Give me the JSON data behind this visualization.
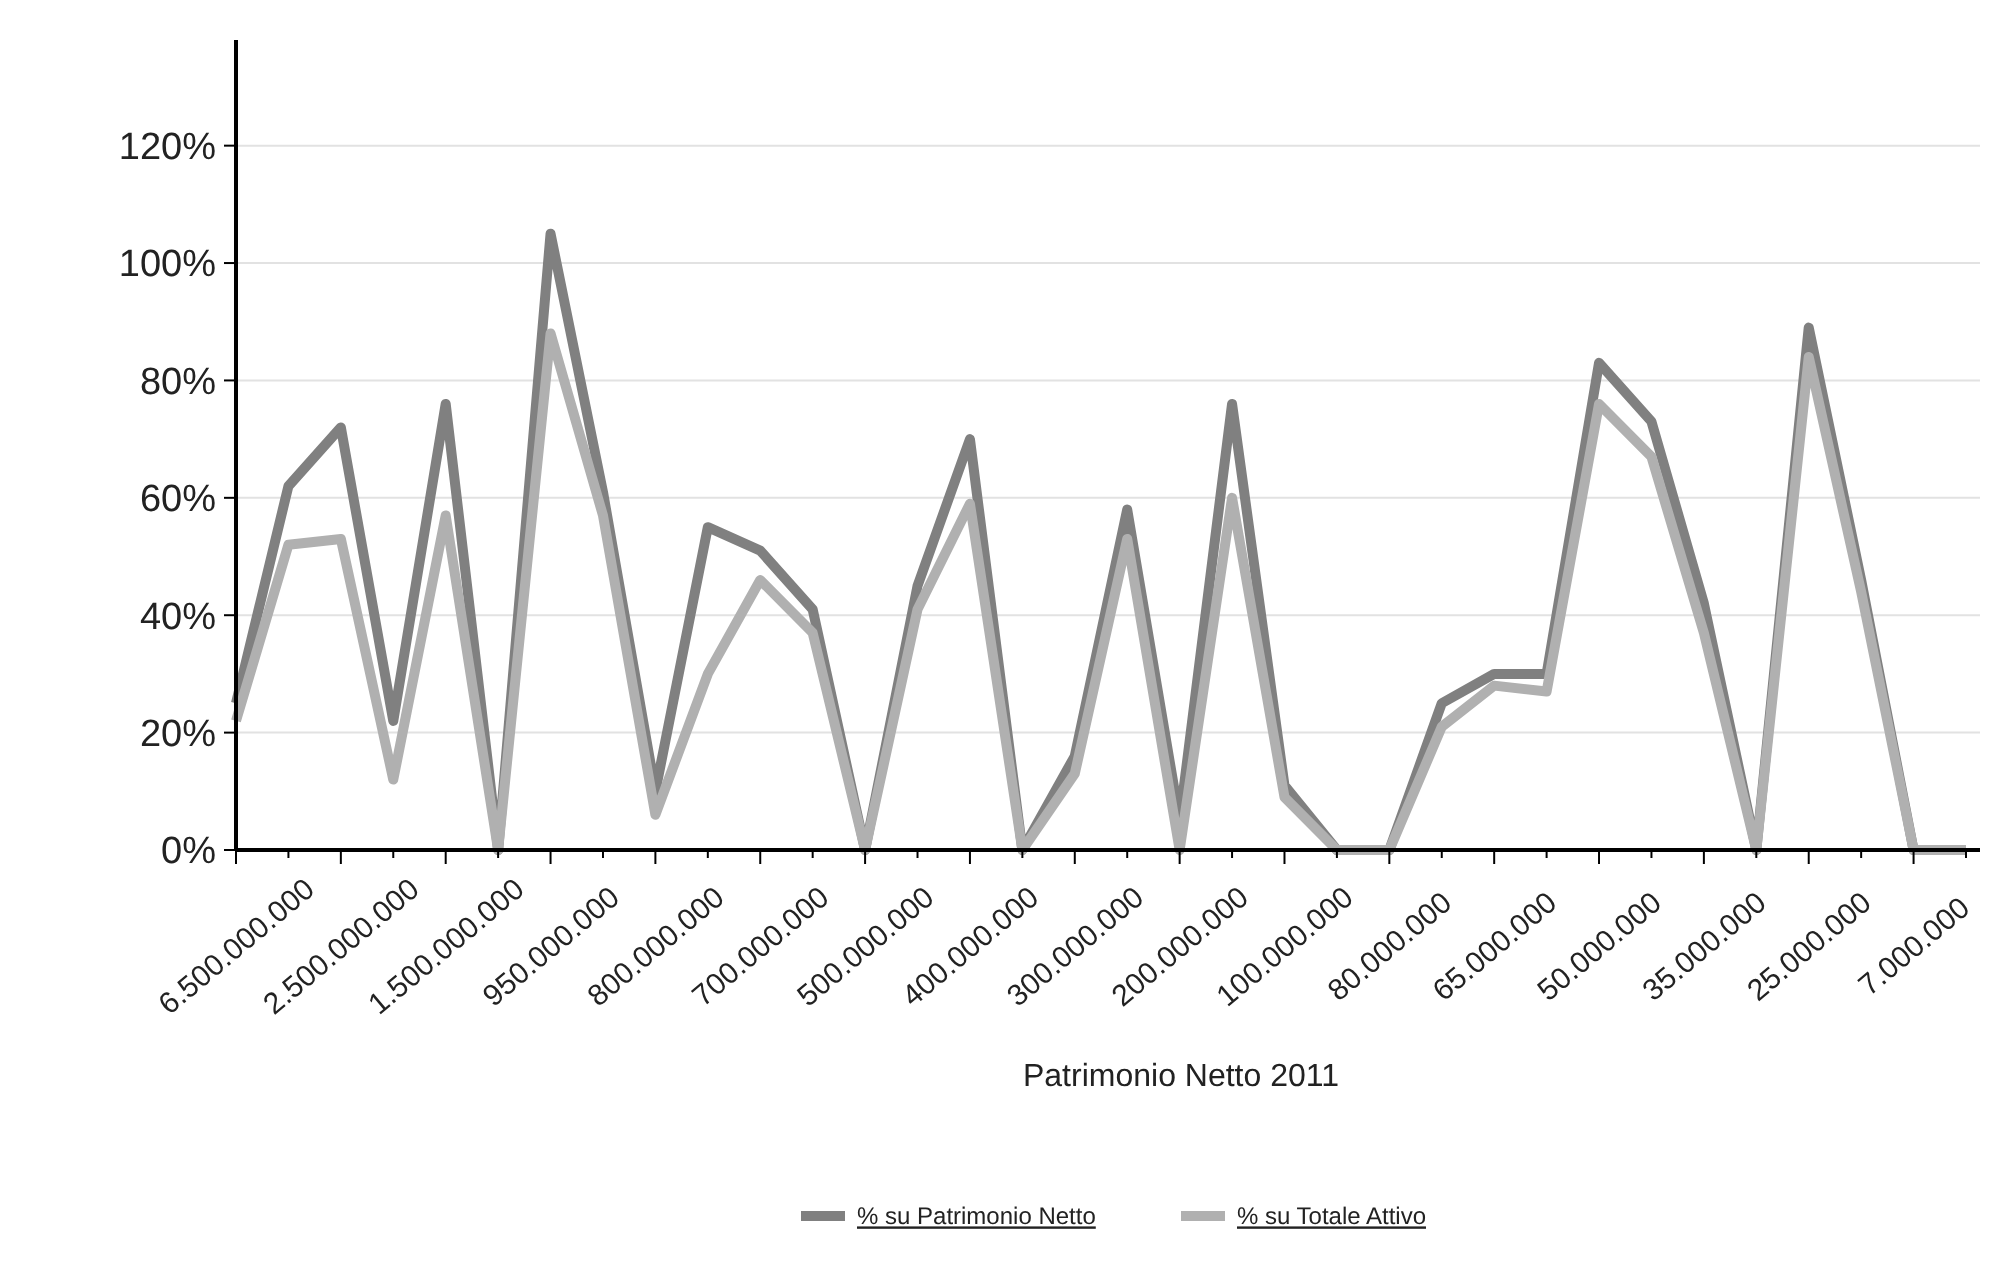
{
  "chart_data": {
    "type": "line",
    "xlabel": "Patrimonio Netto 2011",
    "categories": [
      "6.500.000.000",
      null,
      "2.500.000.000",
      null,
      "1.500.000.000",
      null,
      "950.000.000",
      null,
      "800.000.000",
      null,
      "700.000.000",
      null,
      "500.000.000",
      null,
      "400.000.000",
      null,
      "300.000.000",
      null,
      "200.000.000",
      null,
      "100.000.000",
      null,
      "80.000.000",
      null,
      "65.000.000",
      null,
      "50.000.000",
      null,
      "35.000.000",
      null,
      "25.000.000",
      null,
      "7.000.000",
      null
    ],
    "series": [
      {
        "name": "% su Patrimonio Netto",
        "color": "#808080",
        "values": [
          25,
          62,
          72,
          22,
          76,
          0,
          105,
          61,
          10,
          55,
          51,
          41,
          0,
          45,
          70,
          0,
          16,
          58,
          5,
          76,
          11,
          0,
          0,
          25,
          30,
          30,
          83,
          73,
          42,
          0,
          89,
          46,
          0,
          0
        ]
      },
      {
        "name": "% su Totale Attivo",
        "color": "#b0b0b0",
        "values": [
          22,
          52,
          53,
          12,
          57,
          0,
          88,
          57,
          6,
          30,
          46,
          37,
          0,
          41,
          59,
          0,
          13,
          53,
          0,
          60,
          9,
          0,
          0,
          21,
          28,
          27,
          76,
          67,
          37,
          0,
          84,
          44,
          0,
          0
        ]
      }
    ],
    "ylim": [
      0,
      138
    ],
    "yticks": [
      {
        "value": 0,
        "label": "0%"
      },
      {
        "value": 20,
        "label": "20%"
      },
      {
        "value": 40,
        "label": "40%"
      },
      {
        "value": 60,
        "label": "60%"
      },
      {
        "value": 80,
        "label": "80%"
      },
      {
        "value": 100,
        "label": "100%"
      },
      {
        "value": 120,
        "label": "120%"
      }
    ],
    "grid": "y",
    "legend": "bottom",
    "marker": "none",
    "line_style": "solid"
  }
}
